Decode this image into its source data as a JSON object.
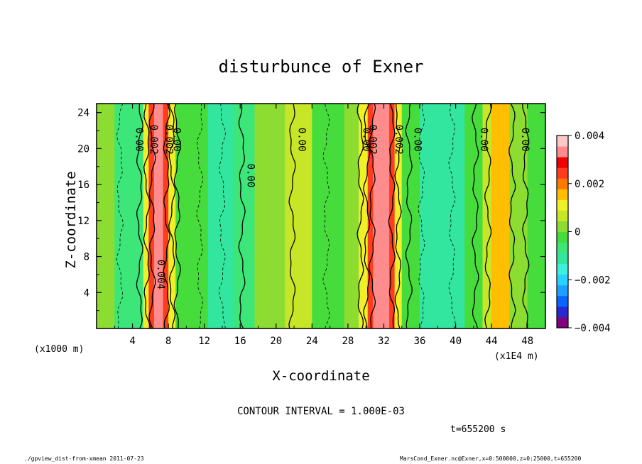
{
  "chart_data": {
    "type": "contour",
    "title": "disturbunce of Exner",
    "xlabel": "X-coordinate",
    "ylabel": "Z-coordinate",
    "x_unit": "(x1E4 m)",
    "z_unit": "(x1000 m)",
    "xlim": [
      0,
      50
    ],
    "ylim": [
      0,
      25
    ],
    "x_ticks": [
      4,
      8,
      12,
      16,
      20,
      24,
      28,
      32,
      36,
      40,
      44,
      48
    ],
    "y_ticks": [
      4,
      8,
      12,
      16,
      20,
      24
    ],
    "colorbar": {
      "min": -0.004,
      "max": 0.004,
      "tick_labels": [
        "0.004",
        "0.002",
        "0",
        "−0.002",
        "−0.004"
      ],
      "colors": [
        "#800080",
        "#2828d0",
        "#0a64ff",
        "#1ea0ff",
        "#28d2ff",
        "#3cf0dc",
        "#32e6a0",
        "#3ce678",
        "#46dc3c",
        "#8cdc32",
        "#c8e628",
        "#f0f028",
        "#ffbe00",
        "#ff7800",
        "#ff3c1e",
        "#f00000",
        "#ff8c8c",
        "#ffc8c8"
      ]
    },
    "field_bands": [
      {
        "x0": 0.0,
        "x1": 2.0,
        "value": 0.0
      },
      {
        "x0": 2.0,
        "x1": 5.2,
        "value": -0.0006
      },
      {
        "x0": 5.2,
        "x1": 5.8,
        "value": 0.0012
      },
      {
        "x0": 5.8,
        "x1": 6.4,
        "value": 0.0025
      },
      {
        "x0": 6.4,
        "x1": 7.4,
        "value": 0.0034
      },
      {
        "x0": 7.4,
        "x1": 8.0,
        "value": 0.0025
      },
      {
        "x0": 8.0,
        "x1": 8.8,
        "value": 0.0012
      },
      {
        "x0": 8.8,
        "x1": 12.4,
        "value": -0.0003
      },
      {
        "x0": 12.4,
        "x1": 15.2,
        "value": -0.0012
      },
      {
        "x0": 15.2,
        "x1": 17.6,
        "value": -0.0006
      },
      {
        "x0": 17.6,
        "x1": 21.0,
        "value": 0.0003
      },
      {
        "x0": 21.0,
        "x1": 24.0,
        "value": 0.0006
      },
      {
        "x0": 24.0,
        "x1": 27.6,
        "value": -0.0002
      },
      {
        "x0": 27.6,
        "x1": 29.2,
        "value": 0.0001
      },
      {
        "x0": 29.2,
        "x1": 30.2,
        "value": 0.0012
      },
      {
        "x0": 30.2,
        "x1": 30.8,
        "value": 0.0025
      },
      {
        "x0": 30.8,
        "x1": 32.6,
        "value": 0.0034
      },
      {
        "x0": 32.6,
        "x1": 33.2,
        "value": 0.0025
      },
      {
        "x0": 33.2,
        "x1": 34.0,
        "value": 0.0012
      },
      {
        "x0": 34.0,
        "x1": 36.0,
        "value": -0.0004
      },
      {
        "x0": 36.0,
        "x1": 41.0,
        "value": -0.0013
      },
      {
        "x0": 41.0,
        "x1": 43.0,
        "value": -0.0004
      },
      {
        "x0": 43.0,
        "x1": 44.0,
        "value": 0.0005
      },
      {
        "x0": 44.0,
        "x1": 46.0,
        "value": 0.0014
      },
      {
        "x0": 46.0,
        "x1": 48.0,
        "value": 0.0004
      },
      {
        "x0": 48.0,
        "x1": 50.0,
        "value": -0.0003
      }
    ],
    "contour_lines": [
      {
        "x": 4.8,
        "style": "solid"
      },
      {
        "x": 5.6,
        "style": "solid"
      },
      {
        "x": 6.2,
        "style": "solid"
      },
      {
        "x": 7.8,
        "style": "solid"
      },
      {
        "x": 8.4,
        "style": "solid"
      },
      {
        "x": 9.0,
        "style": "solid"
      },
      {
        "x": 2.6,
        "style": "dashed"
      },
      {
        "x": 11.5,
        "style": "dashed"
      },
      {
        "x": 14.0,
        "style": "dashed"
      },
      {
        "x": 16.2,
        "style": "solid"
      },
      {
        "x": 21.8,
        "style": "solid"
      },
      {
        "x": 25.6,
        "style": "dashed"
      },
      {
        "x": 29.4,
        "style": "solid"
      },
      {
        "x": 30.1,
        "style": "solid"
      },
      {
        "x": 30.7,
        "style": "solid"
      },
      {
        "x": 32.9,
        "style": "solid"
      },
      {
        "x": 33.6,
        "style": "solid"
      },
      {
        "x": 34.8,
        "style": "solid"
      },
      {
        "x": 36.2,
        "style": "dashed"
      },
      {
        "x": 39.6,
        "style": "dashed"
      },
      {
        "x": 42.2,
        "style": "solid"
      },
      {
        "x": 43.6,
        "style": "solid"
      },
      {
        "x": 46.3,
        "style": "solid"
      },
      {
        "x": 47.8,
        "style": "solid"
      }
    ],
    "contour_labels": [
      {
        "text": "0.00",
        "x": 4.4,
        "z": 21
      },
      {
        "text": "0.002",
        "x": 6.0,
        "z": 21
      },
      {
        "text": "0.002",
        "x": 7.7,
        "z": 21
      },
      {
        "text": "0.00",
        "x": 8.6,
        "z": 21
      },
      {
        "text": "0.004",
        "x": 6.8,
        "z": 6
      },
      {
        "text": "0.00",
        "x": 16.8,
        "z": 17
      },
      {
        "text": "0.00",
        "x": 22.5,
        "z": 21
      },
      {
        "text": "0.00",
        "x": 29.7,
        "z": 21
      },
      {
        "text": "0.002",
        "x": 30.4,
        "z": 21
      },
      {
        "text": "0.002",
        "x": 33.3,
        "z": 21
      },
      {
        "text": "0.00",
        "x": 35.4,
        "z": 21
      },
      {
        "text": "0.00",
        "x": 42.8,
        "z": 21
      },
      {
        "text": "0.00",
        "x": 47.4,
        "z": 21
      }
    ]
  },
  "annotations": {
    "contour_interval": "CONTOUR INTERVAL = 1.000E-03",
    "time": "t=655200 s"
  },
  "footer": {
    "left": "./gpview_dist-from-xmean  2011-07-23",
    "right": "MarsCond_Exner.nc@Exner,x=0:500000,z=0:25000,t=655200"
  }
}
